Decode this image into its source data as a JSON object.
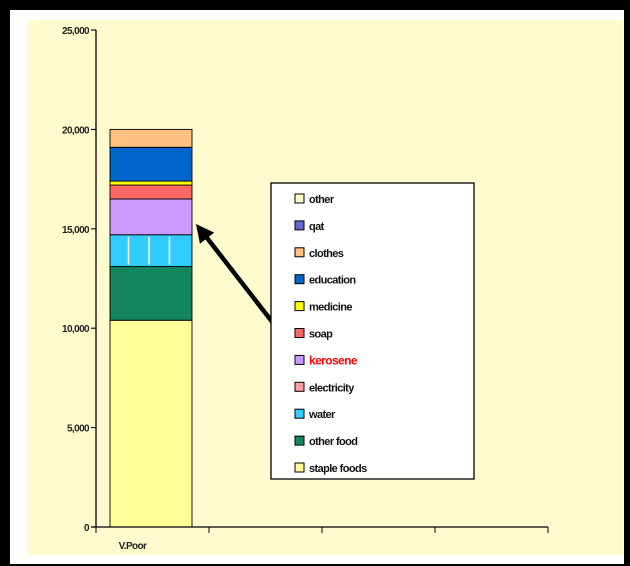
{
  "chart_data": {
    "type": "bar",
    "stacked": true,
    "categories": [
      "V.Poor",
      "",
      "",
      ""
    ],
    "ylim": [
      0,
      25000
    ],
    "yticks": [
      0,
      5000,
      10000,
      15000,
      20000,
      25000
    ],
    "ytick_labels": [
      "0",
      "5,000",
      "10,000",
      "15,000",
      "20,000",
      "25,000"
    ],
    "grid": false,
    "legend_position": "center-right",
    "plot_background": "#fffbcf",
    "series": [
      {
        "name": "staple foods",
        "values": [
          10400,
          0,
          0,
          0
        ],
        "color": "#ffff99"
      },
      {
        "name": "other food",
        "values": [
          2700,
          0,
          0,
          0
        ],
        "color": "#13855c"
      },
      {
        "name": "water",
        "values": [
          1600,
          0,
          0,
          0
        ],
        "color": "#33ccff"
      },
      {
        "name": "electricity",
        "values": [
          0,
          0,
          0,
          0
        ],
        "color": "#ff9f9f"
      },
      {
        "name": "kerosene",
        "values": [
          1800,
          0,
          0,
          0
        ],
        "color": "#cc99ff"
      },
      {
        "name": "soap",
        "values": [
          700,
          0,
          0,
          0
        ],
        "color": "#ff6666"
      },
      {
        "name": "medicine",
        "values": [
          200,
          0,
          0,
          0
        ],
        "color": "#ffff00"
      },
      {
        "name": "education",
        "values": [
          1700,
          0,
          0,
          0
        ],
        "color": "#0066cc"
      },
      {
        "name": "clothes",
        "values": [
          900,
          0,
          0,
          0
        ],
        "color": "#ffc080"
      },
      {
        "name": "qat",
        "values": [
          0,
          0,
          0,
          0
        ],
        "color": "#6666cc"
      },
      {
        "name": "other",
        "values": [
          0,
          0,
          0,
          0
        ],
        "color": "#ffffcc"
      }
    ],
    "highlight": {
      "series": "kerosene",
      "color": "#ff0000"
    }
  }
}
